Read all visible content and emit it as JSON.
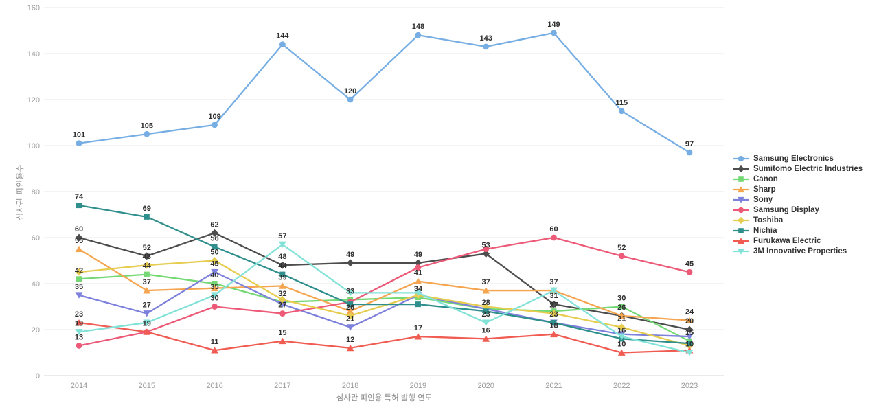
{
  "chart_data": {
    "type": "line",
    "title": "",
    "xlabel": "심사관 피인용 특허 발행 연도",
    "ylabel": "심사관 피인용수",
    "x": [
      "2014",
      "2015",
      "2016",
      "2017",
      "2018",
      "2019",
      "2020",
      "2021",
      "2022",
      "2023"
    ],
    "ylim": [
      0,
      160
    ],
    "yticks": [
      0,
      20,
      40,
      60,
      80,
      100,
      120,
      140,
      160
    ],
    "grid": "horizontal-only",
    "legend_position": "right",
    "series": [
      {
        "name": "Samsung Electronics",
        "color": "#76AEE3",
        "marker": "circle",
        "values": [
          101,
          105,
          109,
          144,
          120,
          148,
          143,
          149,
          115,
          97
        ],
        "show_label": [
          1,
          1,
          1,
          1,
          1,
          1,
          1,
          1,
          1,
          1
        ]
      },
      {
        "name": "Sumitomo Electric Industries",
        "color": "#4D4D4D",
        "marker": "diamond",
        "values": [
          60,
          52,
          62,
          48,
          49,
          49,
          53,
          31,
          26,
          20
        ],
        "show_label": [
          1,
          1,
          1,
          1,
          1,
          1,
          1,
          1,
          1,
          1
        ]
      },
      {
        "name": "Canon",
        "color": "#74D874",
        "marker": "square",
        "values": [
          42,
          44,
          40,
          32,
          33,
          34,
          29,
          28,
          30,
          15
        ],
        "show_label": [
          1,
          1,
          1,
          1,
          1,
          1,
          0,
          0,
          1,
          1
        ]
      },
      {
        "name": "Sharp",
        "color": "#F5A54F",
        "marker": "triangle-up",
        "values": [
          55,
          37,
          38,
          39,
          28,
          41,
          37,
          37,
          26,
          24
        ],
        "show_label": [
          1,
          1,
          0,
          1,
          0,
          1,
          1,
          1,
          0,
          1
        ]
      },
      {
        "name": "Sony",
        "color": "#7D81DC",
        "marker": "triangle-down",
        "values": [
          35,
          27,
          45,
          31,
          21,
          35,
          29,
          23,
          18,
          17
        ],
        "show_label": [
          1,
          1,
          1,
          0,
          1,
          0,
          0,
          1,
          0,
          0
        ]
      },
      {
        "name": "Samsung Display",
        "color": "#EC5A78",
        "marker": "circle",
        "values": [
          13,
          19,
          30,
          27,
          32,
          47,
          55,
          60,
          52,
          45
        ],
        "show_label": [
          1,
          1,
          1,
          1,
          0,
          0,
          0,
          1,
          1,
          1
        ]
      },
      {
        "name": "Toshiba",
        "color": "#E6CC4F",
        "marker": "diamond",
        "values": [
          45,
          48,
          50,
          33,
          26,
          35,
          30,
          27,
          21,
          13
        ],
        "show_label": [
          0,
          1,
          1,
          0,
          1,
          0,
          0,
          1,
          1,
          0
        ]
      },
      {
        "name": "Nichia",
        "color": "#2F8F8C",
        "marker": "square",
        "values": [
          74,
          69,
          56,
          44,
          31,
          31,
          28,
          23,
          16,
          14
        ],
        "show_label": [
          1,
          1,
          1,
          1,
          0,
          0,
          1,
          0,
          1,
          0
        ]
      },
      {
        "name": "Furukawa Electric",
        "color": "#F05B52",
        "marker": "triangle-up",
        "values": [
          23,
          19,
          11,
          15,
          12,
          17,
          16,
          18,
          10,
          11
        ],
        "show_label": [
          1,
          0,
          1,
          1,
          1,
          1,
          1,
          1,
          1,
          0
        ]
      },
      {
        "name": "3M Innovative Properties",
        "color": "#82E2D8",
        "marker": "triangle-down",
        "values": [
          19,
          23,
          35,
          57,
          36,
          36,
          23,
          37,
          17,
          10
        ],
        "show_label": [
          1,
          0,
          1,
          1,
          0,
          0,
          1,
          0,
          0,
          1
        ]
      }
    ]
  },
  "colors": {
    "grid": "#e9e9e9",
    "axis_line": "#d6d6d6",
    "tick_label": "#9a9a9a",
    "axis_title": "#8a8a8a",
    "data_label": "#2e2e2e",
    "legend_text": "#333333",
    "background": "#ffffff"
  }
}
